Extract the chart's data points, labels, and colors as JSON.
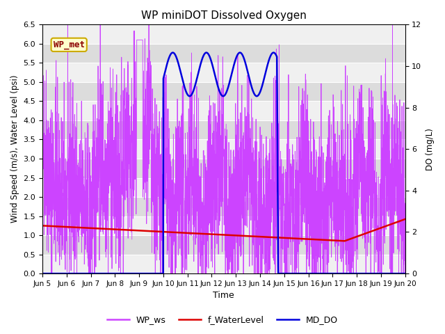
{
  "title": "WP miniDOT Dissolved Oxygen",
  "ylabel_left": "Wind Speed (m/s), Water Level (psi)",
  "ylabel_right": "DO (mg/L)",
  "xlabel": "Time",
  "text_label": "WP_met",
  "ylim_left": [
    0.0,
    6.5
  ],
  "ylim_right": [
    0,
    12
  ],
  "yticks_left": [
    0.0,
    0.5,
    1.0,
    1.5,
    2.0,
    2.5,
    3.0,
    3.5,
    4.0,
    4.5,
    5.0,
    5.5,
    6.0,
    6.5
  ],
  "yticks_right": [
    0,
    2,
    4,
    6,
    8,
    10,
    12
  ],
  "xtick_labels": [
    "Jun 5",
    "Jun 6",
    "Jun 7",
    "Jun 8",
    "Jun 9",
    "Jun 10",
    "Jun 11",
    "Jun 12",
    "Jun 13",
    "Jun 14",
    "Jun 15",
    "Jun 16",
    "Jun 17",
    "Jun 18",
    "Jun 19",
    "Jun 20"
  ],
  "legend_entries": [
    "WP_ws",
    "f_WaterLevel",
    "MD_DO"
  ],
  "legend_colors": [
    "#cc44ff",
    "#dd0000",
    "#0000dd"
  ],
  "plot_bg_color": "#e8e8e8",
  "band_color_light": "#f0f0f0",
  "band_color_dark": "#dcdcdc",
  "grid_color": "#ffffff",
  "wp_ws_color": "#cc44ff",
  "f_water_color": "#dd0000",
  "md_do_color": "#0000dd",
  "text_label_color": "#8b0000",
  "text_label_bg": "#ffffcc",
  "text_label_edge": "#ccaa00"
}
